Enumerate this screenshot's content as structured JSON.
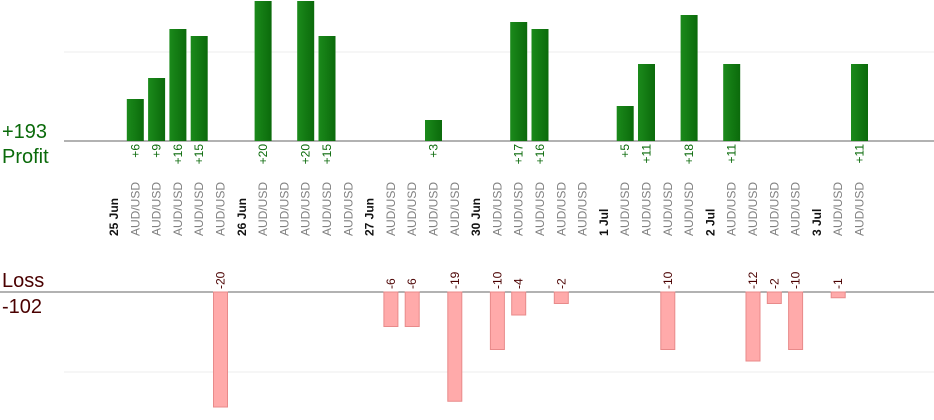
{
  "chart_data": {
    "type": "bar",
    "profit": {
      "label": "Profit",
      "total": "+193"
    },
    "loss": {
      "label": "Loss",
      "total": "-102"
    },
    "colors": {
      "profit": "#0b6a0b",
      "profit_text": "#0a6a0a",
      "loss": "#ffaaaa",
      "loss_stroke": "#e88a8a",
      "loss_text": "#4a0000"
    },
    "category_label": "AUD/USD",
    "categories": [
      "25 Jun",
      "AUD/USD",
      "AUD/USD",
      "AUD/USD",
      "AUD/USD",
      "AUD/USD",
      "26 Jun",
      "AUD/USD",
      "AUD/USD",
      "AUD/USD",
      "AUD/USD",
      "AUD/USD",
      "27 Jun",
      "AUD/USD",
      "AUD/USD",
      "AUD/USD",
      "AUD/USD",
      "30 Jun",
      "AUD/USD",
      "AUD/USD",
      "AUD/USD",
      "AUD/USD",
      "AUD/USD",
      "1 Jul",
      "AUD/USD",
      "AUD/USD",
      "AUD/USD",
      "AUD/USD",
      "2 Jul",
      "AUD/USD",
      "AUD/USD",
      "AUD/USD",
      "AUD/USD",
      "3 Jul",
      "AUD/USD",
      "AUD/USD"
    ],
    "profit_values": [
      null,
      6,
      9,
      16,
      15,
      null,
      null,
      20,
      null,
      20,
      15,
      null,
      null,
      null,
      null,
      3,
      null,
      null,
      null,
      17,
      16,
      null,
      null,
      null,
      5,
      11,
      null,
      18,
      null,
      11,
      null,
      null,
      null,
      null,
      null,
      11
    ],
    "profit_labels": [
      null,
      "+6",
      "+9",
      "+16",
      "+15",
      null,
      null,
      "+20",
      null,
      "+20",
      "+15",
      null,
      null,
      null,
      null,
      "+3",
      null,
      null,
      null,
      "+17",
      "+16",
      null,
      null,
      null,
      "+5",
      "+11",
      null,
      "+18",
      null,
      "+11",
      null,
      null,
      null,
      null,
      null,
      "+11"
    ],
    "loss_values": [
      null,
      null,
      null,
      null,
      null,
      -20,
      null,
      null,
      null,
      null,
      null,
      null,
      null,
      -6,
      -6,
      null,
      -19,
      null,
      -10,
      -4,
      null,
      -2,
      null,
      null,
      null,
      null,
      -10,
      null,
      null,
      null,
      -12,
      -2,
      -10,
      null,
      -1,
      null
    ],
    "loss_labels": [
      null,
      null,
      null,
      null,
      null,
      "-20",
      null,
      null,
      null,
      null,
      null,
      null,
      null,
      "-6",
      "-6",
      null,
      "-19",
      null,
      "-10",
      "-4",
      null,
      "-2",
      null,
      null,
      null,
      null,
      "-10",
      null,
      null,
      null,
      "-12",
      "-2",
      "-10",
      null,
      "-1",
      null
    ],
    "grid": true
  }
}
